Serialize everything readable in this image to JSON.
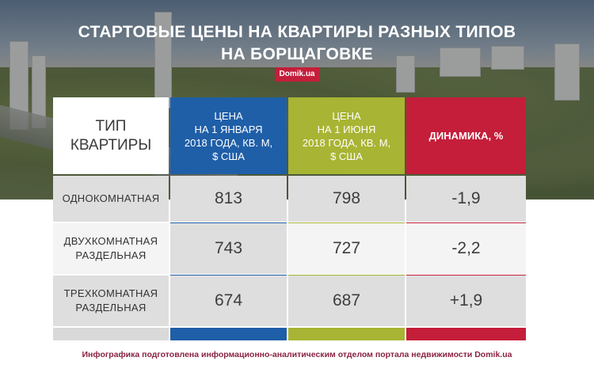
{
  "title_line1": "СТАРТОВЫЕ ЦЕНЫ НА КВАРТИРЫ РАЗНЫХ ТИПОВ",
  "title_line2": "НА БОРЩАГОВКЕ",
  "brand": "Domik.ua",
  "colors": {
    "jan": "#1f5fa8",
    "jun": "#a8b433",
    "dynamics": "#c41e3a",
    "footer": "#8a2342"
  },
  "chart_data": {
    "type": "table",
    "columns": [
      [
        "ТИП",
        "КВАРТИРЫ"
      ],
      [
        "ЦЕНА",
        "НА 1 ЯНВАРЯ",
        "2018 ГОДА, КВ. М,",
        "$ США"
      ],
      [
        "ЦЕНА",
        "НА 1 ИЮНЯ",
        "2018 ГОДА, КВ. М,",
        "$ США"
      ],
      [
        "ДИНАМИКА, %"
      ]
    ],
    "rows": [
      {
        "type": [
          "ОДНОКОМНАТНАЯ"
        ],
        "jan": "813",
        "jun": "798",
        "dynamics": "-1,9"
      },
      {
        "type": [
          "ДВУХКОМНАТНАЯ",
          "РАЗДЕЛЬНАЯ"
        ],
        "jan": "743",
        "jun": "727",
        "dynamics": "-2,2"
      },
      {
        "type": [
          "ТРЕХКОМНАТНАЯ",
          "РАЗДЕЛЬНАЯ"
        ],
        "jan": "674",
        "jun": "687",
        "dynamics": "+1,9"
      }
    ]
  },
  "footer": "Инфографика подготовлена информационно-аналитическим отделом портала недвижимости Domik.ua"
}
